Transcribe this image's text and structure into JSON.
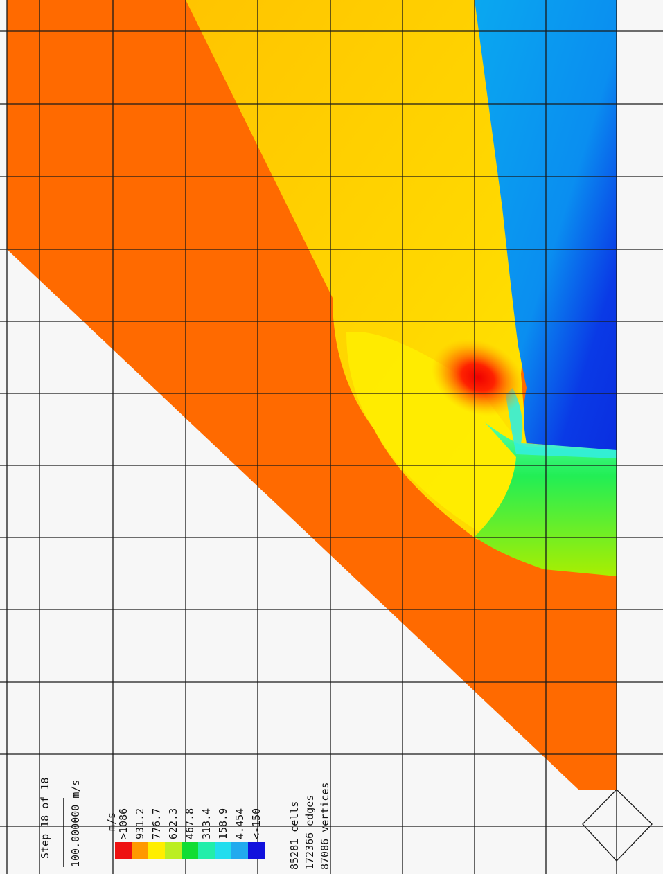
{
  "step_label": "Step 18 of 18",
  "scale_label": "100.000000 m/s",
  "unit_label": "m/s",
  "legend": [
    {
      "label": ">1086",
      "color": "#ee1111"
    },
    {
      "label": "931.2",
      "color": "#ff9900"
    },
    {
      "label": "776.7",
      "color": "#ffee00"
    },
    {
      "label": "622.3",
      "color": "#bbee22"
    },
    {
      "label": "467.8",
      "color": "#11dd33"
    },
    {
      "label": "313.4",
      "color": "#22eeaa"
    },
    {
      "label": "158.9",
      "color": "#22ddee"
    },
    {
      "label": "4.454",
      "color": "#22aaee"
    },
    {
      "label": "<-150",
      "color": "#1111dd"
    }
  ],
  "stats": {
    "cells": "85281 cells",
    "edges": "172366 edges",
    "vertices": "87086 vertices"
  },
  "colors": {
    "background": "#f7f7f7",
    "outer_region": "#ff6a00",
    "upper_region": "#ffc400",
    "blue_region": "#0aa8f0",
    "deep_blue": "#0a2ee0",
    "green_region": "#33dd33",
    "red_peak": "#ee1111",
    "grid_line": "#1a1a1a"
  }
}
